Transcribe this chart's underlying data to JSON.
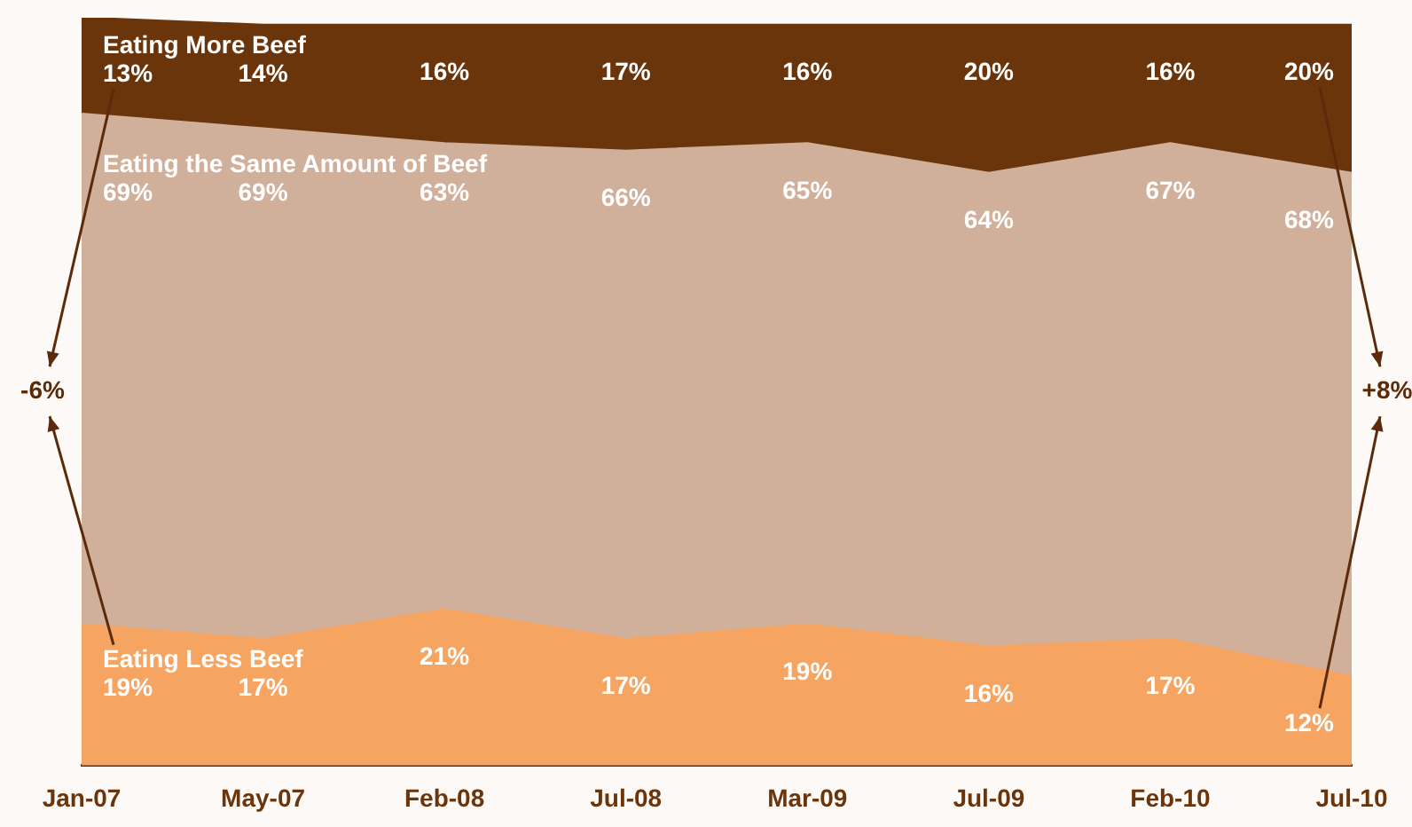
{
  "chart_data": {
    "type": "area",
    "stacked": true,
    "legend": false,
    "grid": false,
    "categories": [
      "Jan-07",
      "May-07",
      "Feb-08",
      "Jul-08",
      "Mar-09",
      "Jul-09",
      "Feb-10",
      "Jul-10"
    ],
    "series": [
      {
        "name": "Eating Less Beef",
        "color": "#f6a461",
        "values": [
          19,
          17,
          21,
          17,
          19,
          16,
          17,
          12
        ],
        "value_labels": [
          "19%",
          "17%",
          "21%",
          "17%",
          "19%",
          "16%",
          "17%",
          "12%"
        ]
      },
      {
        "name": "Eating the Same Amount of Beef",
        "color": "#d0b09b",
        "values": [
          69,
          69,
          63,
          66,
          65,
          64,
          67,
          68
        ],
        "value_labels": [
          "69%",
          "69%",
          "63%",
          "66%",
          "65%",
          "64%",
          "67%",
          "68%"
        ]
      },
      {
        "name": "Eating More Beef",
        "color": "#6b350c",
        "values": [
          13,
          14,
          16,
          17,
          16,
          20,
          16,
          20
        ],
        "value_labels": [
          "13%",
          "14%",
          "16%",
          "17%",
          "16%",
          "20%",
          "16%",
          "20%"
        ]
      }
    ],
    "annotations": [
      "-6%",
      "+8%"
    ]
  }
}
